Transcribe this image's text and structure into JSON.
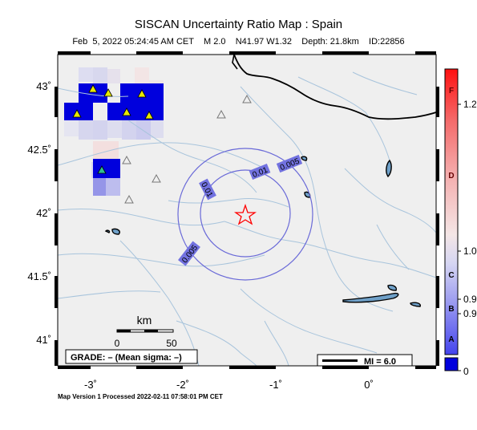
{
  "title": "SISCAN Uncertainty Ratio Map : Spain",
  "subtitle": "Feb  5, 2022 05:24:45 AM CET    M 2.0    N41.97 W1.32    Depth: 21.8km    ID:22856",
  "footer": "Map Version 1 Processed 2022-02-11 07:58:01 PM CET",
  "axes": {
    "x_ticks": [
      "-3˚",
      "-2˚",
      "-1˚",
      "0˚"
    ],
    "y_ticks": [
      "43˚",
      "42.5˚",
      "42˚",
      "41.5˚",
      "41˚"
    ]
  },
  "scale_bar": {
    "title": "km",
    "start": "0",
    "end": "50"
  },
  "grade_box": "GRADE: – (Mean sigma: –)",
  "legend": {
    "mi_label": "MI = 6.0"
  },
  "contour_labels": [
    "0.005",
    "0.01",
    "0.01",
    "0.005"
  ],
  "colorbar": {
    "letters": [
      "F",
      "D",
      "C",
      "B",
      "A"
    ],
    "values": [
      "1.2",
      "1.0",
      "0.9",
      "0.9",
      "0"
    ]
  },
  "colors": {
    "map_background": "#efefef",
    "contour": "#6a6ad8",
    "station_fill": "#e8e800",
    "epicenter": "#ff0000",
    "grid_blue": "#0000dd"
  }
}
